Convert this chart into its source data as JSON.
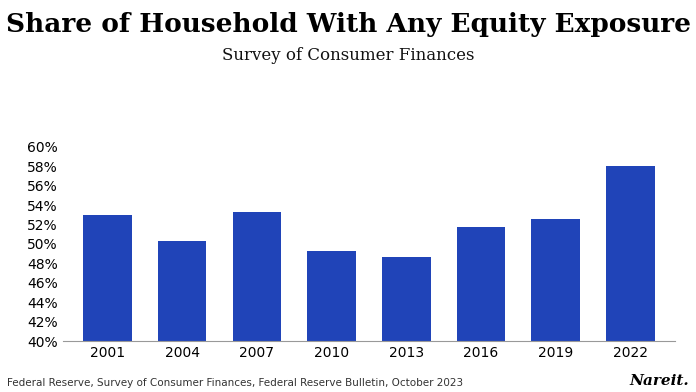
{
  "title": "Share of Household With Any Equity Exposure",
  "subtitle": "Survey of Consumer Finances",
  "categories": [
    "2001",
    "2004",
    "2007",
    "2010",
    "2013",
    "2016",
    "2019",
    "2022"
  ],
  "values": [
    0.53,
    0.503,
    0.533,
    0.493,
    0.487,
    0.518,
    0.526,
    0.58
  ],
  "bar_color": "#2044B8",
  "ylim": [
    0.4,
    0.61
  ],
  "yticks": [
    0.4,
    0.42,
    0.44,
    0.46,
    0.48,
    0.5,
    0.52,
    0.54,
    0.56,
    0.58,
    0.6
  ],
  "background_color": "#ffffff",
  "footnote": "Federal Reserve, Survey of Consumer Finances, Federal Reserve Bulletin, October 2023",
  "logo_text": "Nareit.",
  "title_fontsize": 19,
  "subtitle_fontsize": 12,
  "tick_fontsize": 10,
  "footnote_fontsize": 7.5,
  "logo_fontsize": 11
}
